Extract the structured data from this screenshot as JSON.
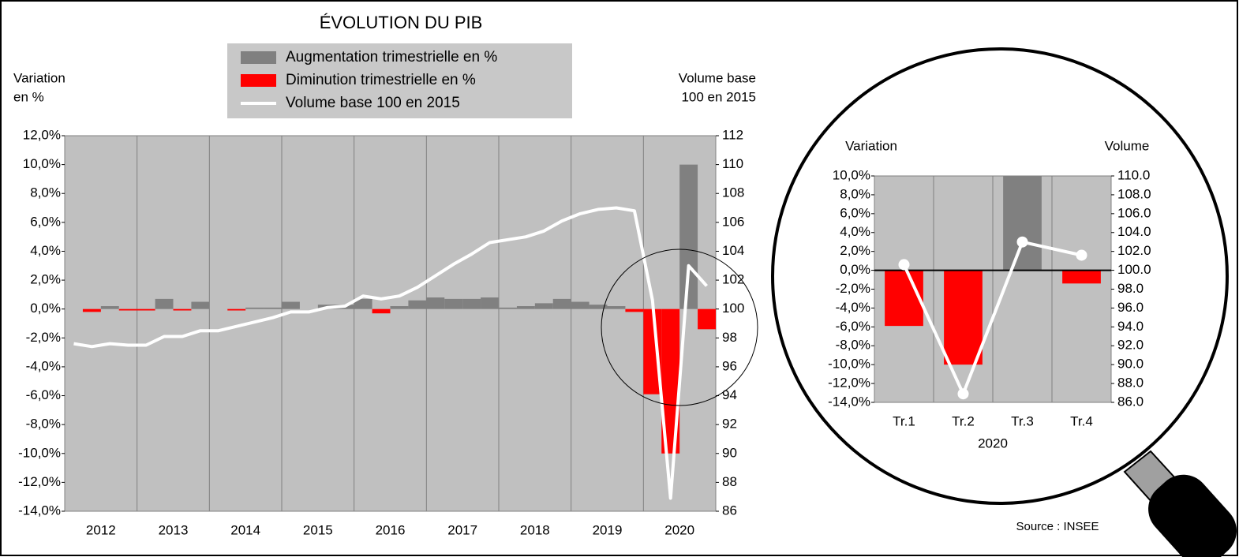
{
  "chart_data": [
    {
      "type": "combo",
      "title": "ÉVOLUTION DU PIB",
      "ylabel": [
        "Variation",
        "en %"
      ],
      "y2label": [
        "Volume base",
        "100 en 2015"
      ],
      "categories": [
        "2012",
        null,
        null,
        null,
        "2013",
        null,
        null,
        null,
        "2014",
        null,
        null,
        null,
        "2015",
        null,
        null,
        null,
        "2016",
        null,
        null,
        null,
        "2017",
        null,
        null,
        null,
        "2018",
        null,
        null,
        null,
        "2019",
        null,
        null,
        null,
        "2020",
        null,
        null,
        null
      ],
      "series": [
        {
          "name": "Augmentation trimestrielle en %",
          "kind": "bar",
          "color": "#808080",
          "values": [
            0.0,
            null,
            0.2,
            null,
            null,
            0.7,
            null,
            0.5,
            0.0,
            null,
            0.1,
            0.1,
            0.5,
            0.0,
            0.3,
            0.3,
            0.7,
            null,
            0.2,
            0.6,
            0.8,
            0.7,
            0.7,
            0.8,
            0.1,
            0.2,
            0.4,
            0.7,
            0.5,
            0.3,
            0.2,
            null,
            null,
            null,
            10,
            null
          ]
        },
        {
          "name": "Diminution trimestrielle en %",
          "kind": "bar",
          "color": "#ff0000",
          "values": [
            null,
            -0.2,
            null,
            -0.1,
            -0.1,
            null,
            -0.1,
            null,
            null,
            -0.1,
            null,
            null,
            null,
            null,
            null,
            null,
            null,
            -0.3,
            null,
            null,
            null,
            null,
            null,
            null,
            null,
            null,
            null,
            null,
            null,
            null,
            null,
            -0.2,
            -5.9,
            -10,
            null,
            -1.4
          ]
        },
        {
          "name": "Volume base 100 en 2015",
          "kind": "line",
          "axis": "y2",
          "color": "#ffffff",
          "values": [
            97.6,
            97.4,
            97.6,
            97.5,
            97.5,
            98.1,
            98.1,
            98.5,
            98.5,
            98.8,
            99.1,
            99.4,
            99.8,
            99.8,
            100.1,
            100.2,
            100.9,
            100.7,
            100.9,
            101.5,
            102.3,
            103.1,
            103.8,
            104.6,
            104.8,
            105.0,
            105.4,
            106.1,
            106.6,
            106.9,
            107.0,
            106.8,
            100.6,
            86.9,
            103.0,
            101.6
          ]
        }
      ],
      "ylim": [
        -14,
        12
      ],
      "yticks": [
        {
          "value": -14,
          "label": "-14,0%"
        },
        {
          "value": -12,
          "label": "-12,0%"
        },
        {
          "value": -10,
          "label": "-10,0%"
        },
        {
          "value": -8,
          "label": "-8,0%"
        },
        {
          "value": -6,
          "label": "-6,0%"
        },
        {
          "value": -4,
          "label": "-4,0%"
        },
        {
          "value": -2,
          "label": "-2,0%"
        },
        {
          "value": 0,
          "label": "0,0%"
        },
        {
          "value": 2,
          "label": "2,0%"
        },
        {
          "value": 4,
          "label": "4,0%"
        },
        {
          "value": 6,
          "label": "6,0%"
        },
        {
          "value": 8,
          "label": "8,0%"
        },
        {
          "value": 10,
          "label": "10,0%"
        },
        {
          "value": 12,
          "label": "12,0%"
        }
      ],
      "y2lim": [
        86,
        112
      ],
      "y2ticks": [
        86,
        88,
        90,
        92,
        94,
        96,
        98,
        100,
        102,
        104,
        106,
        108,
        110,
        112
      ],
      "legend": "top"
    },
    {
      "type": "combo",
      "ylabel": [
        "Variation"
      ],
      "y2label": [
        "Volume"
      ],
      "xlabel": "2020",
      "categories": [
        "Tr.1",
        "Tr.2",
        "Tr.3",
        "Tr.4"
      ],
      "series": [
        {
          "kind": "bar",
          "color": "#808080",
          "values": [
            null,
            null,
            10,
            null
          ]
        },
        {
          "kind": "bar",
          "color": "#ff0000",
          "values": [
            -5.9,
            -10,
            null,
            -1.4
          ]
        },
        {
          "kind": "line",
          "axis": "y2",
          "color": "#ffffff",
          "markers": true,
          "values": [
            100.6,
            86.9,
            103.0,
            101.6
          ]
        }
      ],
      "ylim": [
        -14,
        10
      ],
      "yticks": [
        {
          "value": -14,
          "label": "-14,0%"
        },
        {
          "value": -12,
          "label": "-12,0%"
        },
        {
          "value": -10,
          "label": "-10,0%"
        },
        {
          "value": -8,
          "label": "-8,0%"
        },
        {
          "value": -6,
          "label": "-6,0%"
        },
        {
          "value": -4,
          "label": "-4,0%"
        },
        {
          "value": -2,
          "label": "-2,0%"
        },
        {
          "value": 0,
          "label": "0,0%"
        },
        {
          "value": 2,
          "label": "2,0%"
        },
        {
          "value": 4,
          "label": "4,0%"
        },
        {
          "value": 6,
          "label": "6,0%"
        },
        {
          "value": 8,
          "label": "8,0%"
        },
        {
          "value": 10,
          "label": "10,0%"
        }
      ],
      "y2lim": [
        86,
        110
      ],
      "y2ticks": [
        {
          "value": 86,
          "label": "86.0"
        },
        {
          "value": 88,
          "label": "88.0"
        },
        {
          "value": 90,
          "label": "90.0"
        },
        {
          "value": 92,
          "label": "92.0"
        },
        {
          "value": 94,
          "label": "94.0"
        },
        {
          "value": 96,
          "label": "96.0"
        },
        {
          "value": 98,
          "label": "98.0"
        },
        {
          "value": 100,
          "label": "100.0"
        },
        {
          "value": 102,
          "label": "102.0"
        },
        {
          "value": 104,
          "label": "104.0"
        },
        {
          "value": 106,
          "label": "106.0"
        },
        {
          "value": 108,
          "label": "108.0"
        },
        {
          "value": 110,
          "label": "110.0"
        }
      ],
      "zero_line": true,
      "source": "Source : INSEE"
    }
  ]
}
